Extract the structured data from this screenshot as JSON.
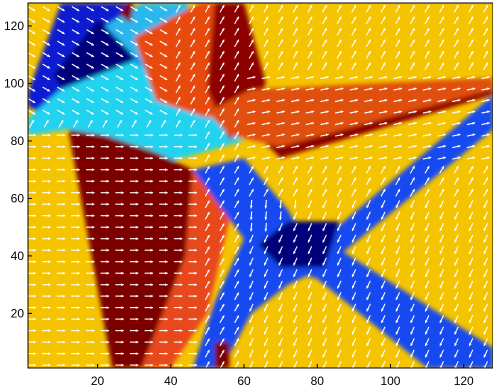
{
  "chart_data": {
    "type": "heatmap",
    "subtype": "orientation field with quiver overlay",
    "title": "",
    "xlabel": "",
    "ylabel": "",
    "xlim": [
      1,
      128
    ],
    "ylim": [
      1,
      128
    ],
    "x_ticks": [
      20,
      40,
      60,
      80,
      100,
      120
    ],
    "y_ticks": [
      20,
      40,
      60,
      80,
      100,
      120
    ],
    "x_tick_labels": [
      "20",
      "40",
      "60",
      "80",
      "100",
      "120"
    ],
    "y_tick_labels": [
      "20",
      "40",
      "60",
      "80",
      "100",
      "120"
    ],
    "grid": false,
    "legend": "none",
    "colormap": "jet",
    "background_color": "#f5c400",
    "arrow_color": "#ffffff",
    "quiver_spacing": 4,
    "regions": [
      {
        "name": "blue-band-upper-left",
        "color": "#0a1fd0",
        "polygon": [
          [
            1,
            97
          ],
          [
            10,
            128
          ],
          [
            28,
            128
          ],
          [
            40,
            100
          ],
          [
            15,
            83
          ],
          [
            1,
            92
          ]
        ]
      },
      {
        "name": "navy-core-upper-left",
        "color": "#02027a",
        "polygon": [
          [
            8,
            103
          ],
          [
            20,
            122
          ],
          [
            30,
            114
          ],
          [
            28,
            94
          ],
          [
            15,
            88
          ]
        ]
      },
      {
        "name": "cyan-patch-left",
        "color": "#22d3f0",
        "polygon": [
          [
            1,
            88
          ],
          [
            10,
            98
          ],
          [
            30,
            108
          ],
          [
            60,
            80
          ],
          [
            40,
            73
          ],
          [
            25,
            78
          ],
          [
            12,
            84
          ],
          [
            1,
            82
          ]
        ]
      },
      {
        "name": "cyan-patch-top",
        "color": "#2ab7ee",
        "polygon": [
          [
            22,
            120
          ],
          [
            32,
            128
          ],
          [
            45,
            128
          ],
          [
            42,
            110
          ],
          [
            34,
            104
          ]
        ]
      },
      {
        "name": "red-wedge-upper",
        "color": "#e84a10",
        "polygon": [
          [
            30,
            116
          ],
          [
            48,
            128
          ],
          [
            56,
            128
          ],
          [
            60,
            98
          ],
          [
            50,
            88
          ],
          [
            36,
            94
          ]
        ]
      },
      {
        "name": "darkred-wedge-top",
        "color": "#8c0000",
        "polygon": [
          [
            52,
            128
          ],
          [
            60,
            128
          ],
          [
            66,
            100
          ],
          [
            56,
            80
          ],
          [
            50,
            98
          ]
        ]
      },
      {
        "name": "darkred-band-right",
        "color": "#8c0000",
        "polygon": [
          [
            62,
            84
          ],
          [
            128,
            100
          ],
          [
            128,
            96
          ],
          [
            70,
            74
          ]
        ]
      },
      {
        "name": "red-band-right",
        "color": "#e05010",
        "polygon": [
          [
            50,
            90
          ],
          [
            62,
            98
          ],
          [
            128,
            102
          ],
          [
            128,
            98
          ],
          [
            70,
            78
          ],
          [
            56,
            82
          ]
        ]
      },
      {
        "name": "darkred-wedge-lower-left",
        "color": "#7c0000",
        "polygon": [
          [
            12,
            84
          ],
          [
            24,
            1
          ],
          [
            32,
            1
          ],
          [
            44,
            40
          ],
          [
            46,
            70
          ],
          [
            36,
            76
          ],
          [
            22,
            82
          ]
        ]
      },
      {
        "name": "red-wedge-lower-left",
        "color": "#e8481a",
        "polygon": [
          [
            32,
            1
          ],
          [
            44,
            40
          ],
          [
            46,
            70
          ],
          [
            60,
            74
          ],
          [
            50,
            20
          ],
          [
            40,
            1
          ]
        ]
      },
      {
        "name": "blue-band-diagonal-main",
        "color": "#1848f0",
        "polygon": [
          [
            46,
            70
          ],
          [
            60,
            74
          ],
          [
            72,
            56
          ],
          [
            78,
            42
          ],
          [
            128,
            96
          ],
          [
            128,
            84
          ],
          [
            82,
            36
          ],
          [
            72,
            30
          ],
          [
            62,
            20
          ],
          [
            54,
            1
          ],
          [
            46,
            1
          ],
          [
            52,
            24
          ],
          [
            60,
            46
          ]
        ]
      },
      {
        "name": "blue-band-diagonal-lower",
        "color": "#1848f0",
        "polygon": [
          [
            60,
            30
          ],
          [
            72,
            44
          ],
          [
            84,
            44
          ],
          [
            128,
            8
          ],
          [
            128,
            1
          ],
          [
            110,
            1
          ],
          [
            80,
            32
          ],
          [
            70,
            36
          ]
        ]
      },
      {
        "name": "navy-core-center",
        "color": "#02027a",
        "polygon": [
          [
            64,
            44
          ],
          [
            72,
            52
          ],
          [
            86,
            52
          ],
          [
            82,
            36
          ],
          [
            70,
            36
          ]
        ]
      },
      {
        "name": "darkred-strip-bottom",
        "color": "#7c0000",
        "polygon": [
          [
            52,
            1
          ],
          [
            56,
            1
          ],
          [
            56,
            10
          ],
          [
            52,
            10
          ]
        ]
      },
      {
        "name": "darkred-strip-top",
        "color": "#7c0000",
        "polygon": [
          [
            26,
            124
          ],
          [
            28,
            128
          ],
          [
            30,
            128
          ],
          [
            29,
            121
          ]
        ]
      }
    ]
  }
}
